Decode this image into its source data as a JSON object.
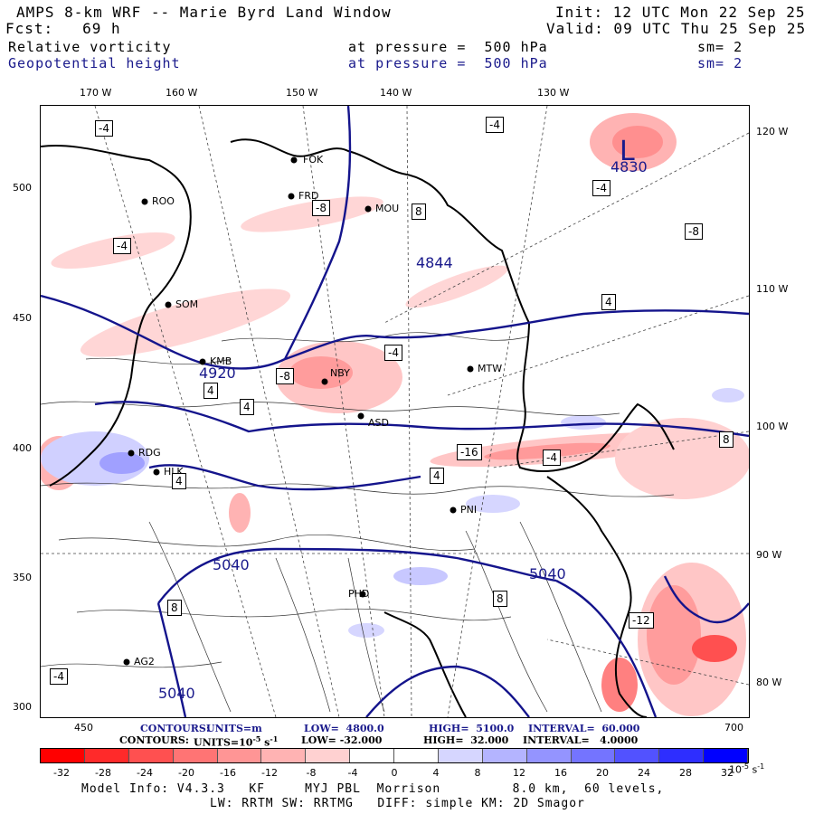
{
  "header": {
    "title": "AMPS 8-km WRF -- Marie Byrd Land Window",
    "init": "Init: 12 UTC Mon 22 Sep 25",
    "fcst": "Fcst:   69 h",
    "valid": "Valid: 09 UTC Thu 25 Sep 25",
    "field1_name": "Relative vorticity",
    "field1_level": "at pressure =  500 hPa",
    "field1_sm": "sm= 2",
    "field2_name": "Geopotential height",
    "field2_level": "at pressure =  500 hPa",
    "field2_sm": "sm= 2"
  },
  "axes": {
    "top_lon": [
      "170 W",
      "160 W",
      "150 W",
      "140 W",
      "130 W"
    ],
    "right_lon": [
      "120 W",
      "110 W",
      "100 W",
      "90 W",
      "80 W"
    ],
    "left_y": [
      "500",
      "450",
      "400",
      "350",
      "300"
    ],
    "bottom_x": [
      "450",
      "700"
    ]
  },
  "stations": [
    "FOK",
    "ROO",
    "FRD",
    "MOU",
    "SOM",
    "KMB",
    "NBY",
    "MTW",
    "ASD",
    "RDG",
    "HLK",
    "PNI",
    "PHD",
    "AG2"
  ],
  "contour_labels": {
    "vorticity": [
      "-4",
      "-4",
      "-8",
      "8",
      "4",
      "-4",
      "-4",
      "4",
      "-4",
      "-8",
      "-12",
      "-16",
      "8",
      "8",
      "-4",
      "-4",
      "4",
      "4",
      "8",
      "-8",
      "4"
    ],
    "height": [
      "4830",
      "4844",
      "4920",
      "5040",
      "5040",
      "5040"
    ],
    "low_marker": "L"
  },
  "contours_line_1": {
    "label": "CONTOURS:",
    "units": "UNITS=m",
    "low": "LOW=  4800.0",
    "high": "HIGH=  5100.0",
    "interval": "INTERVAL=  60.000"
  },
  "contours_line_2": {
    "label": "CONTOURS:",
    "units": "UNITS=10",
    "units_exp": "-5",
    "units_tail": " s",
    "units_tail_exp": "-1",
    "low": "LOW= -32.000",
    "high": "HIGH=  32.000",
    "interval": "INTERVAL=   4.0000"
  },
  "colorbar": {
    "labels": [
      "-32",
      "-28",
      "-24",
      "-20",
      "-16",
      "-12",
      "-8",
      "-4",
      "0",
      "4",
      "8",
      "12",
      "16",
      "20",
      "24",
      "28",
      "32"
    ],
    "unit": "10",
    "unit_exp": "-5",
    "unit_tail": " s",
    "unit_tail_exp": "-1",
    "colors": [
      "#ff0000",
      "#ff2a2a",
      "#ff5050",
      "#ff7474",
      "#ff9595",
      "#ffb3b3",
      "#ffd1d1",
      "#ffffff",
      "#ffffff",
      "#d6d6ff",
      "#b4b4ff",
      "#9494ff",
      "#7474ff",
      "#5252ff",
      "#2e2eff",
      "#0000ff"
    ]
  },
  "footer": {
    "line1": "Model Info: V4.3.3   KF     MYJ PBL  Morrison         8.0 km,  60 levels,",
    "line2": "LW: RRTM SW: RRTMG   DIFF: simple KM: 2D Smagor"
  }
}
